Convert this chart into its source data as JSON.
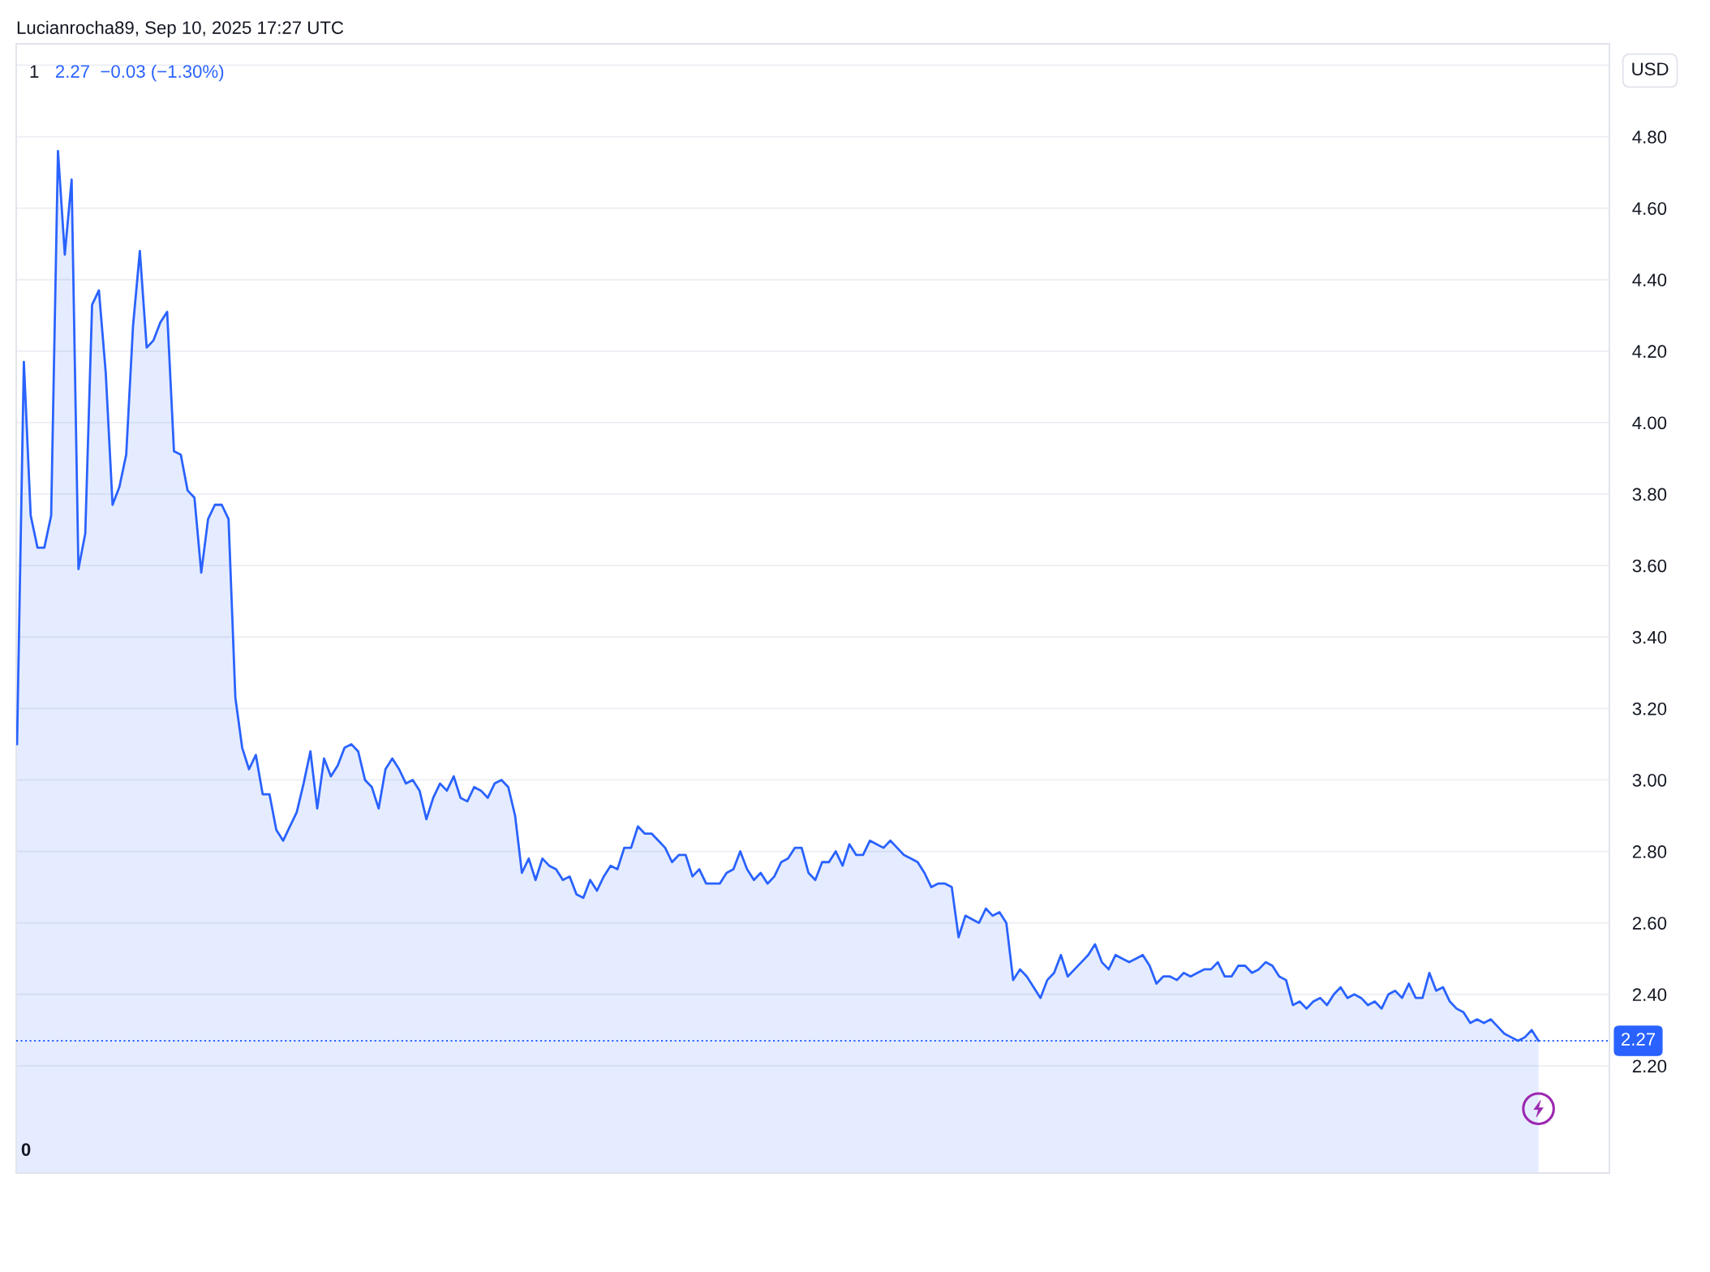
{
  "chart_data": {
    "type": "area",
    "title": "Lucianrocha89, Sep 10, 2025 17:27 UTC",
    "subtitle": "1",
    "ylabel": "USD",
    "annotations": [
      "2.27  −0.03 (−1.30%)",
      "0"
    ],
    "categories": [
      null,
      null,
      null,
      null,
      null,
      null,
      null,
      null,
      null,
      null,
      null,
      null,
      null,
      null,
      null,
      null,
      null,
      null,
      null,
      null,
      null,
      null,
      null,
      null,
      null,
      null,
      null,
      null,
      null,
      null,
      null,
      null,
      null,
      null,
      null,
      null,
      null,
      null,
      null,
      null,
      null,
      null,
      null,
      null,
      null,
      null,
      null,
      null,
      null,
      null,
      null,
      null,
      null,
      null,
      null,
      null,
      null,
      null,
      null,
      null,
      null,
      null,
      null,
      null,
      null,
      null,
      null,
      null,
      null,
      null,
      null,
      null,
      null,
      null,
      null,
      null,
      null,
      null,
      null,
      null,
      null,
      null,
      null,
      null,
      null,
      null,
      null,
      null,
      null,
      null,
      null,
      null,
      null,
      null,
      null,
      null,
      null,
      null,
      null,
      null,
      null,
      null,
      null,
      null,
      null,
      null,
      null,
      null,
      null,
      null,
      null,
      null,
      null,
      null,
      null,
      null,
      null,
      null,
      null,
      null,
      null,
      null,
      null,
      null,
      null,
      null,
      null,
      null,
      null,
      null,
      null,
      null,
      null,
      null,
      null,
      null,
      null,
      null,
      null,
      null,
      null,
      null,
      null,
      null,
      null,
      null,
      null,
      null,
      null,
      null,
      null,
      null,
      null,
      null,
      null,
      null,
      null,
      null,
      null,
      null,
      null,
      null,
      null,
      null,
      null,
      null,
      null,
      null,
      null,
      null,
      null,
      null,
      null,
      null,
      null,
      null,
      null,
      null,
      null,
      null,
      null,
      null,
      null,
      null,
      null,
      null,
      null,
      null,
      null,
      null,
      null,
      null,
      null,
      null,
      null,
      null,
      null,
      null,
      null,
      null,
      null,
      null,
      null,
      null,
      null,
      null,
      null,
      null,
      null,
      null,
      null,
      null,
      null,
      null,
      null,
      null,
      null,
      null,
      null,
      null,
      null,
      null,
      null,
      null
    ],
    "values": [
      3.1,
      4.17,
      3.74,
      3.65,
      3.65,
      3.74,
      4.76,
      4.47,
      4.68,
      3.59,
      3.69,
      4.33,
      4.37,
      4.14,
      3.77,
      3.82,
      3.91,
      4.27,
      4.48,
      4.21,
      4.23,
      4.28,
      4.31,
      3.92,
      3.91,
      3.81,
      3.79,
      3.58,
      3.73,
      3.77,
      3.77,
      3.73,
      3.23,
      3.09,
      3.03,
      3.07,
      2.96,
      2.96,
      2.86,
      2.83,
      2.87,
      2.91,
      2.99,
      3.08,
      2.92,
      3.06,
      3.01,
      3.04,
      3.09,
      3.1,
      3.08,
      3.0,
      2.98,
      2.92,
      3.03,
      3.06,
      3.03,
      2.99,
      3.0,
      2.97,
      2.89,
      2.95,
      2.99,
      2.97,
      3.01,
      2.95,
      2.94,
      2.98,
      2.97,
      2.95,
      2.99,
      3.0,
      2.98,
      2.9,
      2.74,
      2.78,
      2.72,
      2.78,
      2.76,
      2.75,
      2.72,
      2.73,
      2.68,
      2.67,
      2.72,
      2.69,
      2.73,
      2.76,
      2.75,
      2.81,
      2.81,
      2.87,
      2.85,
      2.85,
      2.83,
      2.81,
      2.77,
      2.79,
      2.79,
      2.73,
      2.75,
      2.71,
      2.71,
      2.71,
      2.74,
      2.75,
      2.8,
      2.75,
      2.72,
      2.74,
      2.71,
      2.73,
      2.77,
      2.78,
      2.81,
      2.81,
      2.74,
      2.72,
      2.77,
      2.77,
      2.8,
      2.76,
      2.82,
      2.79,
      2.79,
      2.83,
      2.82,
      2.81,
      2.83,
      2.81,
      2.79,
      2.78,
      2.77,
      2.74,
      2.7,
      2.71,
      2.71,
      2.7,
      2.56,
      2.62,
      2.61,
      2.6,
      2.64,
      2.62,
      2.63,
      2.6,
      2.44,
      2.47,
      2.45,
      2.42,
      2.39,
      2.44,
      2.46,
      2.51,
      2.45,
      2.47,
      2.49,
      2.51,
      2.54,
      2.49,
      2.47,
      2.51,
      2.5,
      2.49,
      2.5,
      2.51,
      2.48,
      2.43,
      2.45,
      2.45,
      2.44,
      2.46,
      2.45,
      2.46,
      2.47,
      2.47,
      2.49,
      2.45,
      2.45,
      2.48,
      2.48,
      2.46,
      2.47,
      2.49,
      2.48,
      2.45,
      2.44,
      2.37,
      2.38,
      2.36,
      2.38,
      2.39,
      2.37,
      2.4,
      2.42,
      2.39,
      2.4,
      2.39,
      2.37,
      2.38,
      2.36,
      2.4,
      2.41,
      2.39,
      2.43,
      2.39,
      2.39,
      2.46,
      2.41,
      2.42,
      2.38,
      2.36,
      2.35,
      2.32,
      2.33,
      2.32,
      2.33,
      2.31,
      2.29,
      2.28,
      2.27,
      2.28,
      2.3,
      2.27
    ],
    "color": "#2962ff",
    "ylim": [
      1.9,
      5.06
    ],
    "yticks": [
      {
        "value": 5.0,
        "label": null
      },
      {
        "value": 4.8,
        "label": "4.80"
      },
      {
        "value": 4.6,
        "label": "4.60"
      },
      {
        "value": 4.4,
        "label": "4.40"
      },
      {
        "value": 4.2,
        "label": "4.20"
      },
      {
        "value": 4.0,
        "label": "4.00"
      },
      {
        "value": 3.8,
        "label": "3.80"
      },
      {
        "value": 3.6,
        "label": "3.60"
      },
      {
        "value": 3.4,
        "label": "3.40"
      },
      {
        "value": 3.2,
        "label": "3.20"
      },
      {
        "value": 3.0,
        "label": "3.00"
      },
      {
        "value": 2.8,
        "label": "2.80"
      },
      {
        "value": 2.6,
        "label": "2.60"
      },
      {
        "value": 2.4,
        "label": "2.40"
      },
      {
        "value": 2.2,
        "label": "2.20"
      }
    ],
    "grid": "y",
    "tick_labels": "y",
    "ref_lines": [
      {
        "axis": "y",
        "value": 2.27,
        "label": "2.27",
        "color": "#2962ff",
        "line_style": "dotted"
      }
    ]
  }
}
